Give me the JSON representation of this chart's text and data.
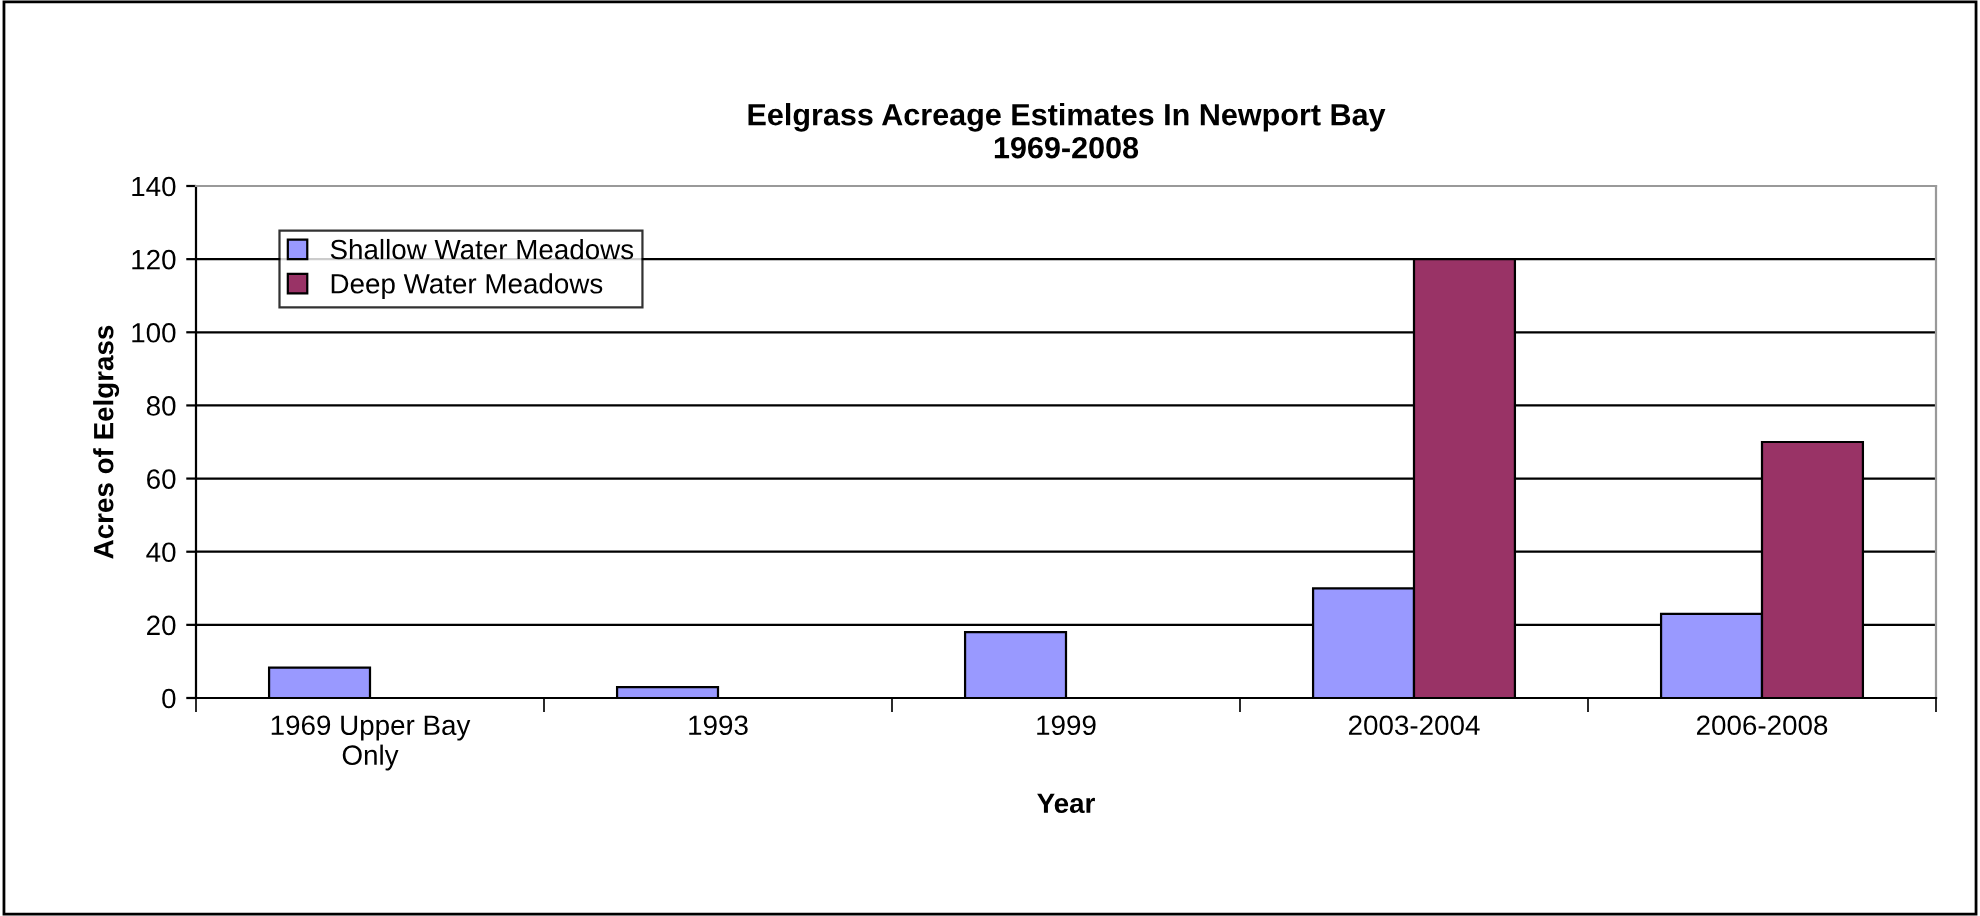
{
  "chart_data": {
    "type": "bar",
    "title": "Eelgrass Acreage Estimates In Newport Bay\n1969-2008",
    "xlabel": "Year",
    "ylabel": "Acres of Eelgrass",
    "categories": [
      "1969 Upper Bay\nOnly",
      "1993",
      "1999",
      "2003-2004",
      "2006-2008"
    ],
    "series": [
      {
        "name": "Shallow Water Meadows",
        "color": "#9999ff",
        "values": [
          8.3,
          3,
          18,
          30,
          23
        ]
      },
      {
        "name": "Deep Water Meadows",
        "color": "#993366",
        "values": [
          null,
          null,
          null,
          120,
          70
        ]
      }
    ],
    "ylim": [
      0,
      140
    ],
    "yticks": [
      0,
      20,
      40,
      60,
      80,
      100,
      120,
      140
    ],
    "grid": "y",
    "legend": "top left"
  }
}
